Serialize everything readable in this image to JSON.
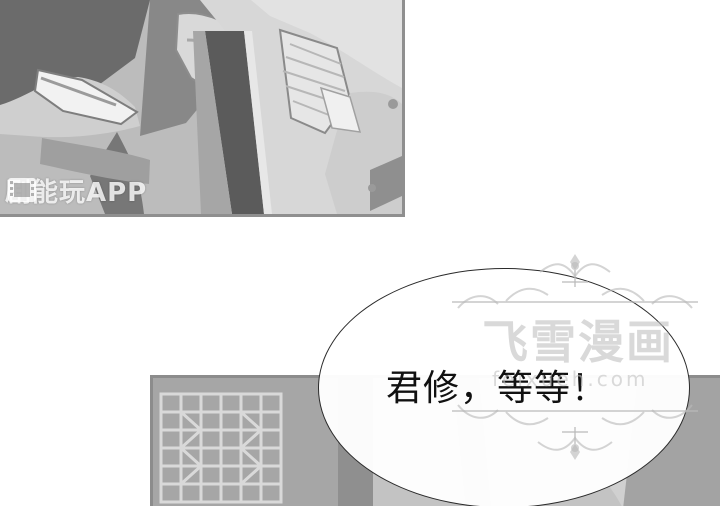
{
  "watermark_app": {
    "text": "剧能玩APP",
    "icon": "film-strip-icon"
  },
  "speech_bubble": {
    "text": "君修，等等！"
  },
  "site_watermark": {
    "title": "飞雪漫画",
    "url": "feixueh.com"
  },
  "colors": {
    "panel_border": "#8c8c8c",
    "bubble_outline": "#2b2b2b",
    "watermark_gray": "#bfbfbf"
  }
}
